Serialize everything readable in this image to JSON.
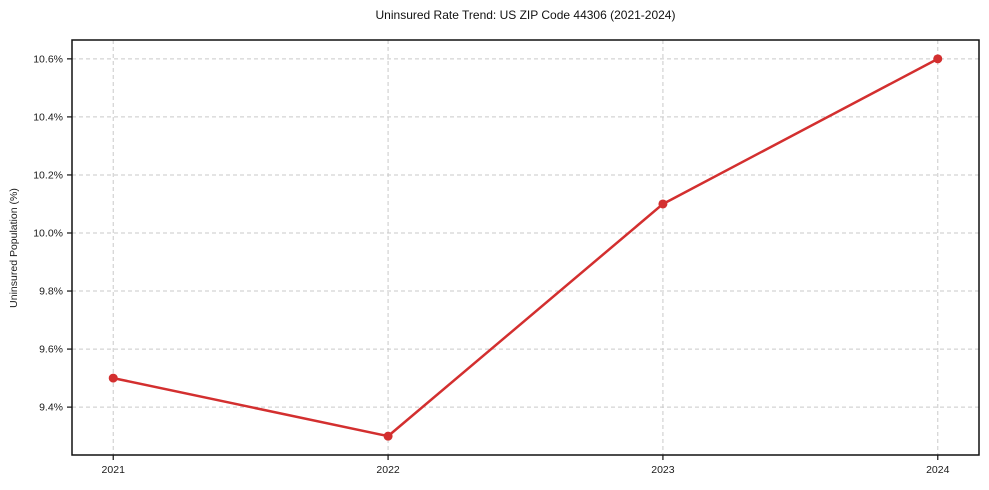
{
  "chart_data": {
    "type": "line",
    "title": "Uninsured Rate Trend: US ZIP Code 44306 (2021-2024)",
    "xlabel": "",
    "ylabel": "Uninsured Population (%)",
    "x": [
      2021,
      2022,
      2023,
      2024
    ],
    "x_tick_labels": [
      "2021",
      "2022",
      "2023",
      "2024"
    ],
    "series": [
      {
        "name": "Uninsured Rate",
        "values": [
          9.5,
          9.3,
          10.1,
          10.6
        ]
      }
    ],
    "y_ticks": [
      9.4,
      9.6,
      9.8,
      10.0,
      10.2,
      10.4,
      10.6
    ],
    "y_tick_suffix": "%",
    "xlim": [
      2020.85,
      2024.15
    ],
    "ylim": [
      9.235,
      10.665
    ],
    "grid": true,
    "legend": "none",
    "marker": "circle",
    "colors": {
      "line": "#d32f2f",
      "grid": "#c9c9c9",
      "spine": "#111111",
      "text": "#1a1a1a",
      "background": "#ffffff"
    }
  }
}
